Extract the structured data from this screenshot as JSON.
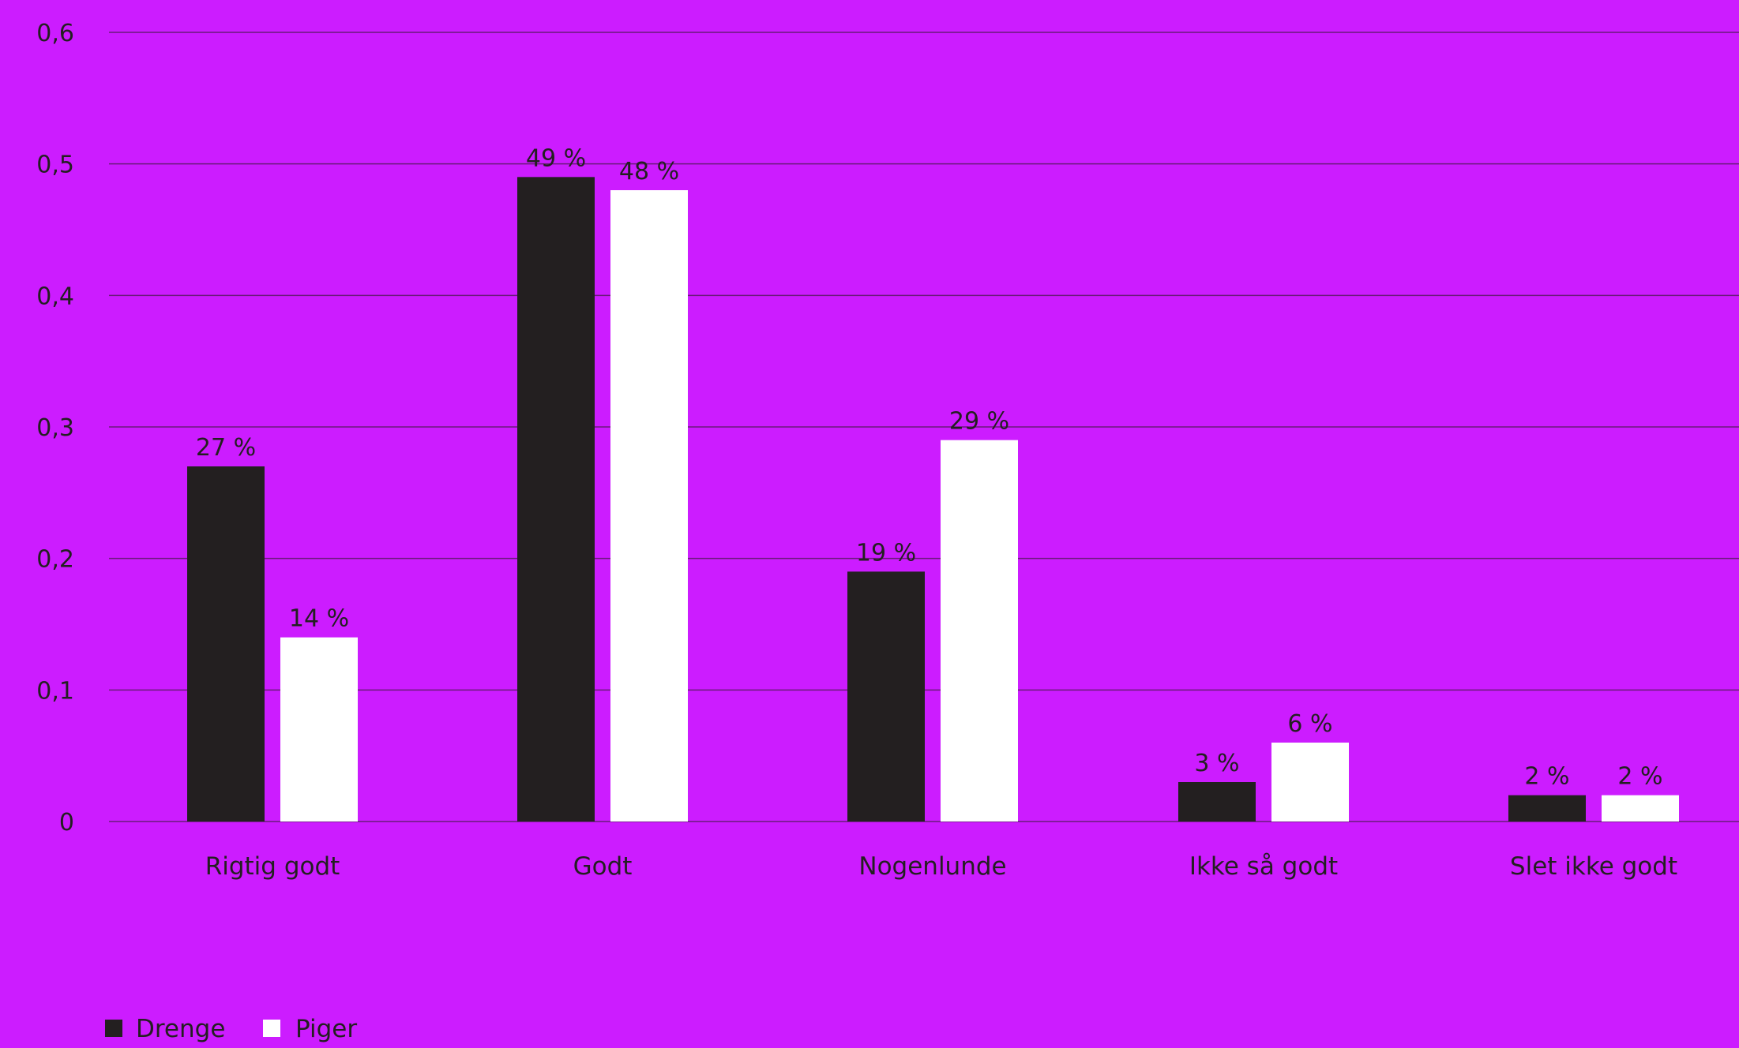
{
  "chart_data": {
    "type": "bar",
    "title": "",
    "xlabel": "",
    "ylabel": "",
    "ylim": [
      0,
      0.6
    ],
    "yticks": [
      0,
      0.1,
      0.2,
      0.3,
      0.4,
      0.5,
      0.6
    ],
    "ytick_labels": [
      "0",
      "0,1",
      "0,2",
      "0,3",
      "0,4",
      "0,5",
      "0,6"
    ],
    "grid": true,
    "legend_position": "bottom-left",
    "categories": [
      "Rigtig godt",
      "Godt",
      "Nogenlunde",
      "Ikke så godt",
      "Slet ikke godt"
    ],
    "series": [
      {
        "name": "Drenge",
        "color": "#231f20",
        "values": [
          0.27,
          0.49,
          0.19,
          0.03,
          0.02
        ],
        "labels": [
          "27 %",
          "49 %",
          "19 %",
          "3 %",
          "2 %"
        ]
      },
      {
        "name": "Piger",
        "color": "#ffffff",
        "values": [
          0.14,
          0.48,
          0.29,
          0.06,
          0.02
        ],
        "labels": [
          "14 %",
          "48 %",
          "29 %",
          "6 %",
          "2 %"
        ]
      }
    ]
  },
  "colors": {
    "background": "#cc1cff",
    "gridline": "#6a1a7a",
    "text": "#231f20"
  }
}
